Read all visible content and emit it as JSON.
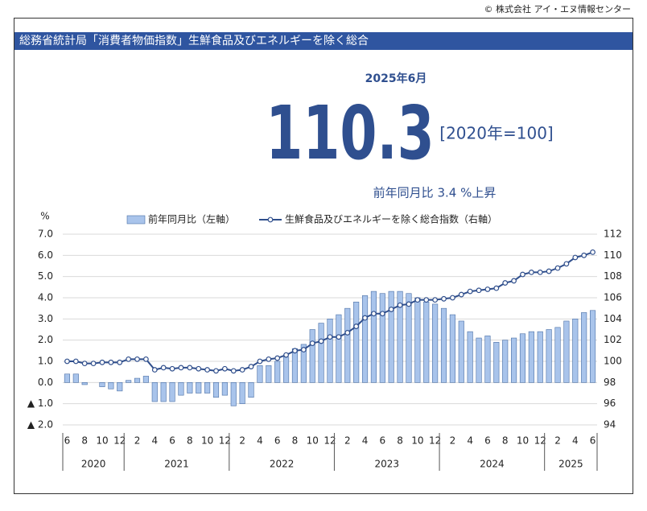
{
  "copyright": "© 株式会社 アイ・エヌ情報センター",
  "header": "総務省統計局「消費者物価指数」生鮮食品及びエネルギーを除く総合",
  "headline": {
    "period": "2025年6月",
    "value": "110.3",
    "base": "[2020年=100]",
    "change": "前年同月比  3.4 %上昇"
  },
  "chart_data": {
    "type": "bar-line",
    "y_unit": "%",
    "categories": [
      "6",
      null,
      "8",
      null,
      "10",
      null,
      "12",
      null,
      "2",
      null,
      "4",
      null,
      "6",
      null,
      "8",
      null,
      "10",
      null,
      "12",
      null,
      "2",
      null,
      "4",
      null,
      "6",
      null,
      "8",
      null,
      "10",
      null,
      "12",
      null,
      "2",
      null,
      "4",
      null,
      "6",
      null,
      "8",
      null,
      "10",
      null,
      "12",
      null,
      "2",
      null,
      "4",
      null,
      "6",
      null,
      "8",
      null,
      "10",
      null,
      "12",
      null,
      "2",
      null,
      "4",
      null,
      "6"
    ],
    "years": [
      "2020",
      "2021",
      "2022",
      "2023",
      "2024",
      "2025"
    ],
    "series": [
      {
        "name": "前年同月比（左軸）",
        "color": "#a9c4eb",
        "values": [
          0.4,
          0.4,
          -0.1,
          0.0,
          -0.2,
          -0.3,
          -0.4,
          0.1,
          0.2,
          0.3,
          -0.9,
          -0.9,
          -0.9,
          -0.6,
          -0.5,
          -0.5,
          -0.5,
          -0.7,
          -0.6,
          -1.1,
          -1.0,
          -0.7,
          0.8,
          0.8,
          1.0,
          1.2,
          1.6,
          1.8,
          2.5,
          2.8,
          3.0,
          3.2,
          3.5,
          3.8,
          4.1,
          4.3,
          4.2,
          4.3,
          4.3,
          4.2,
          4.0,
          3.8,
          3.7,
          3.5,
          3.2,
          2.9,
          2.4,
          2.1,
          2.2,
          1.9,
          2.0,
          2.1,
          2.3,
          2.4,
          2.4,
          2.5,
          2.6,
          2.9,
          3.0,
          3.3,
          3.4
        ]
      },
      {
        "name": "生鮮食品及びエネルギーを除く総合指数（右軸）",
        "color": "#2f4e8c",
        "axis": "y2",
        "values": [
          100.0,
          100.0,
          99.8,
          99.8,
          99.9,
          99.9,
          99.9,
          100.2,
          100.2,
          100.2,
          99.2,
          99.4,
          99.3,
          99.4,
          99.4,
          99.3,
          99.2,
          99.1,
          99.3,
          99.1,
          99.2,
          99.5,
          100.0,
          100.2,
          100.3,
          100.6,
          101.0,
          101.1,
          101.7,
          101.9,
          102.3,
          102.3,
          102.7,
          103.3,
          104.1,
          104.5,
          104.5,
          104.9,
          105.3,
          105.4,
          105.8,
          105.8,
          105.8,
          105.9,
          106.0,
          106.3,
          106.6,
          106.7,
          106.8,
          106.9,
          107.4,
          107.6,
          108.2,
          108.4,
          108.4,
          108.5,
          108.8,
          109.2,
          109.8,
          110.0,
          110.3
        ]
      }
    ],
    "ylim": [
      -2,
      7
    ],
    "yticks": [
      {
        "value": -2,
        "label": "▲ 2.0"
      },
      {
        "value": -1,
        "label": "▲ 1.0"
      },
      {
        "value": 0,
        "label": "0.0"
      },
      {
        "value": 1,
        "label": "1.0"
      },
      {
        "value": 2,
        "label": "2.0"
      },
      {
        "value": 3,
        "label": "3.0"
      },
      {
        "value": 4,
        "label": "4.0"
      },
      {
        "value": 5,
        "label": "5.0"
      },
      {
        "value": 6,
        "label": "6.0"
      },
      {
        "value": 7,
        "label": "7.0"
      }
    ],
    "y2lim": [
      94,
      112
    ],
    "y2ticks": [
      94,
      96,
      98,
      100,
      102,
      104,
      106,
      108,
      110,
      112
    ],
    "grid": true
  }
}
